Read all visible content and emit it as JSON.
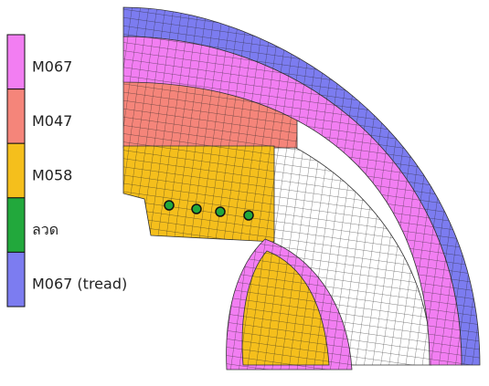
{
  "legend": {
    "items": [
      {
        "label": "M067",
        "color": "#f27ef2"
      },
      {
        "label": "M047",
        "color": "#f5857a"
      },
      {
        "label": "M058",
        "color": "#f5bf1c"
      },
      {
        "label": "ลวด",
        "color": "#22a83c"
      },
      {
        "label": "M067 (tread)",
        "color": "#7c7cf0"
      }
    ]
  }
}
